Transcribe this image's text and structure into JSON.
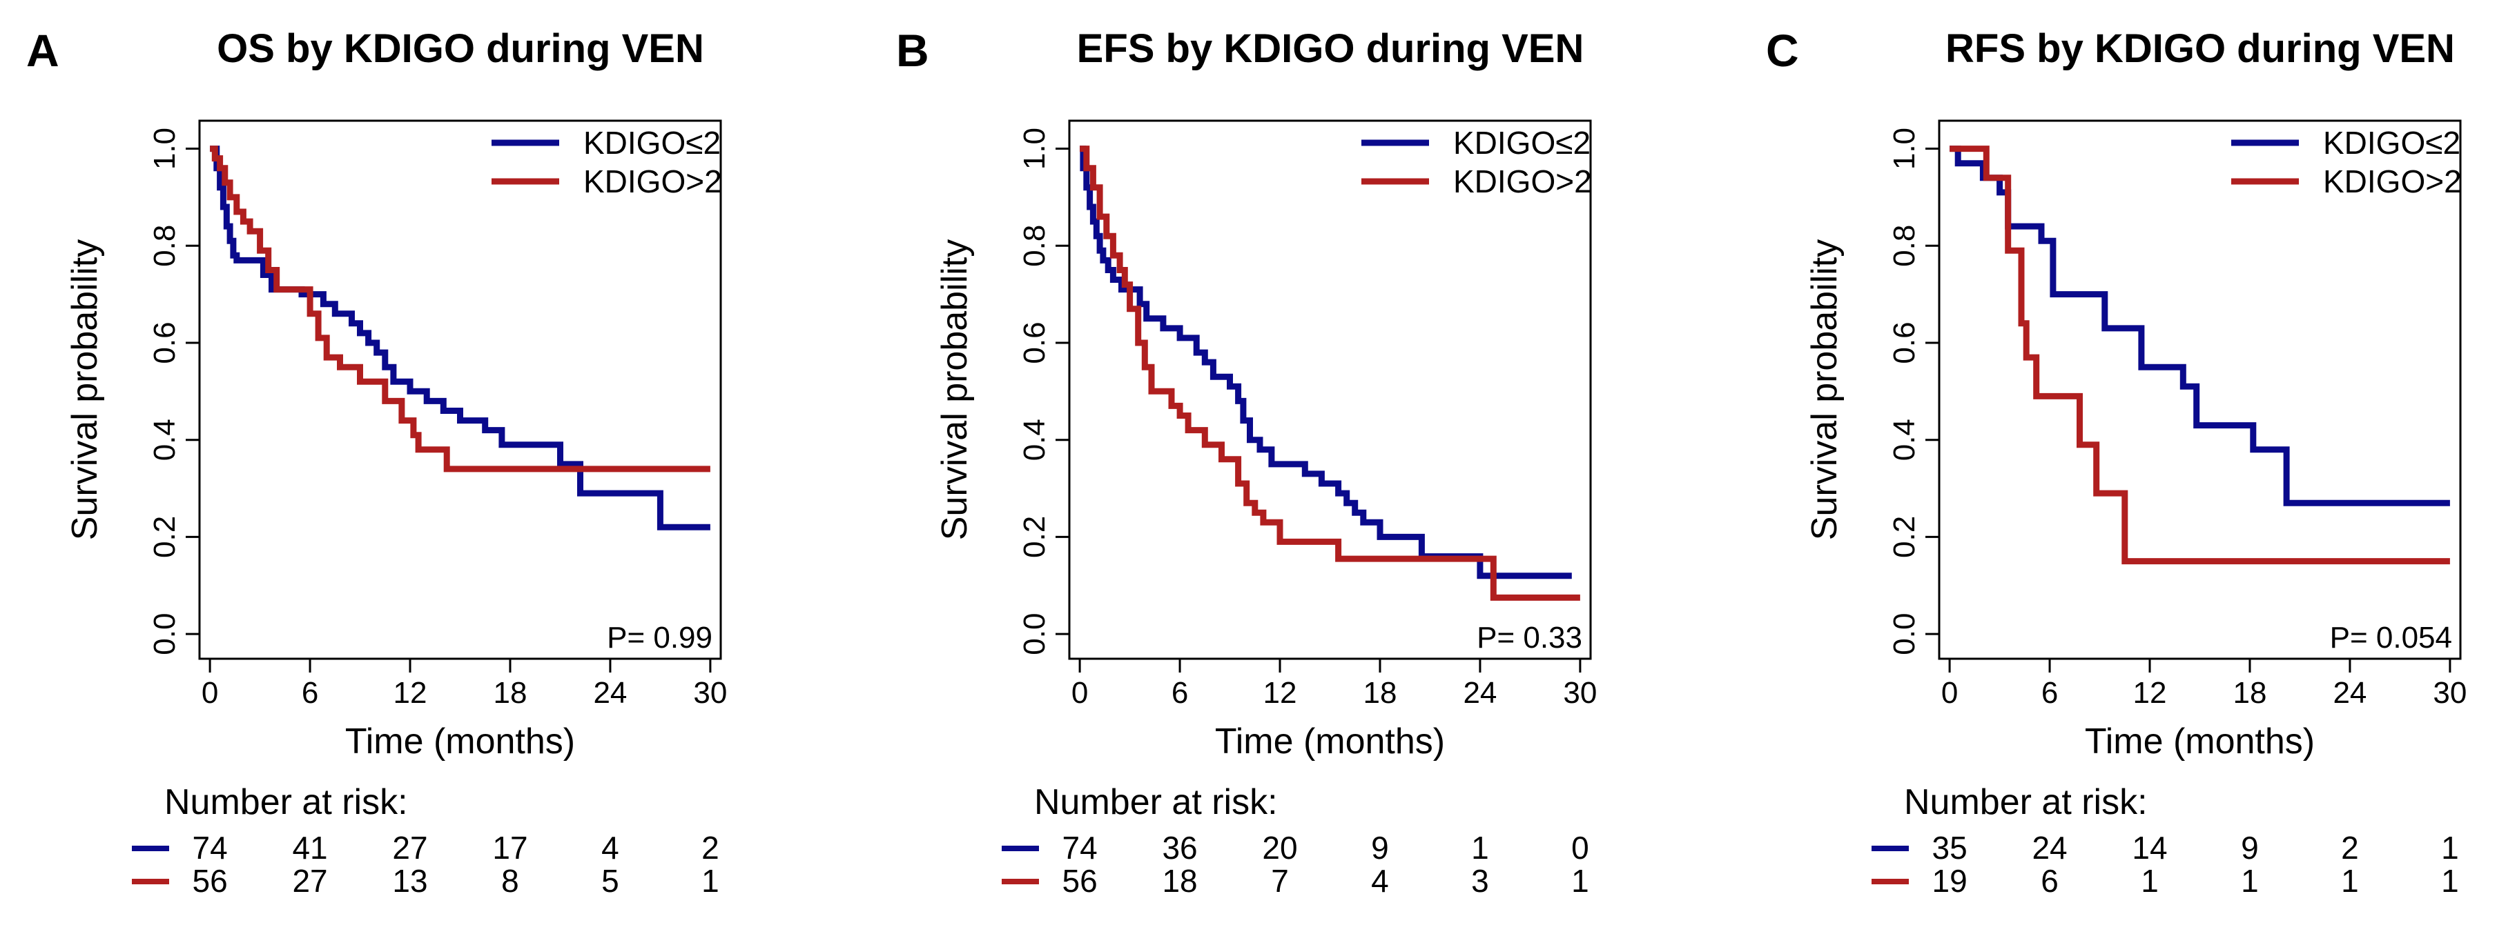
{
  "chart_data": [
    {
      "type": "line",
      "panel": "A",
      "title": "OS by KDIGO during VEN",
      "xlabel": "Time (months)",
      "ylabel": "Survival probability",
      "xlim": [
        0,
        30
      ],
      "ylim": [
        0,
        1
      ],
      "x_ticks": [
        0,
        6,
        12,
        18,
        24,
        30
      ],
      "y_ticks": [
        "0.0",
        "0.2",
        "0.4",
        "0.6",
        "0.8",
        "1.0"
      ],
      "legend": [
        "KDIGO≤2",
        "KDIGO>2"
      ],
      "legend_position": "top-right",
      "p_value": "P= 0.99",
      "series": [
        {
          "name": "KDIGO≤2",
          "color": "#0a0a8c",
          "x": [
            0,
            0.4,
            0.6,
            0.8,
            1.0,
            1.2,
            1.4,
            1.6,
            2.5,
            3.2,
            3.7,
            5.5,
            6.8,
            7.5,
            8.5,
            9.0,
            9.5,
            10.0,
            10.5,
            11.0,
            12.0,
            13.0,
            14.0,
            15.0,
            16.5,
            17.5,
            21.0,
            22.2,
            27.0,
            30.0
          ],
          "y": [
            1.0,
            0.96,
            0.92,
            0.88,
            0.84,
            0.81,
            0.78,
            0.77,
            0.77,
            0.74,
            0.71,
            0.7,
            0.68,
            0.66,
            0.64,
            0.62,
            0.6,
            0.58,
            0.55,
            0.52,
            0.5,
            0.48,
            0.46,
            0.44,
            0.42,
            0.39,
            0.35,
            0.29,
            0.22,
            0.22
          ]
        },
        {
          "name": "KDIGO>2",
          "color": "#b01f1f",
          "x": [
            0,
            0.3,
            0.6,
            0.9,
            1.2,
            1.6,
            2.0,
            2.4,
            3.0,
            3.5,
            4.0,
            6.0,
            6.5,
            7.0,
            7.8,
            9.0,
            10.5,
            11.5,
            12.2,
            12.5,
            14.2,
            30.0
          ],
          "y": [
            1.0,
            0.98,
            0.96,
            0.93,
            0.9,
            0.87,
            0.85,
            0.83,
            0.79,
            0.75,
            0.71,
            0.66,
            0.61,
            0.57,
            0.55,
            0.52,
            0.48,
            0.44,
            0.41,
            0.38,
            0.34,
            0.34
          ]
        }
      ],
      "risk_table": {
        "label": "Number at risk:",
        "rows": [
          {
            "color": "#0a0a8c",
            "values": [
              "74",
              "41",
              "27",
              "17",
              "4",
              "2"
            ]
          },
          {
            "color": "#b01f1f",
            "values": [
              "56",
              "27",
              "13",
              "8",
              "5",
              "1"
            ]
          }
        ]
      }
    },
    {
      "type": "line",
      "panel": "B",
      "title": "EFS by KDIGO during VEN",
      "xlabel": "Time (months)",
      "ylabel": "Survival probability",
      "xlim": [
        0,
        30
      ],
      "ylim": [
        0,
        1
      ],
      "x_ticks": [
        0,
        6,
        12,
        18,
        24,
        30
      ],
      "y_ticks": [
        "0.0",
        "0.2",
        "0.4",
        "0.6",
        "0.8",
        "1.0"
      ],
      "legend": [
        "KDIGO≤2",
        "KDIGO>2"
      ],
      "legend_position": "top-right",
      "p_value": "P= 0.33",
      "series": [
        {
          "name": "KDIGO≤2",
          "color": "#0a0a8c",
          "x": [
            0,
            0.2,
            0.4,
            0.6,
            0.8,
            1.0,
            1.2,
            1.4,
            1.7,
            2.0,
            2.5,
            3.0,
            3.6,
            4.0,
            5.0,
            6.0,
            7.0,
            7.5,
            8.0,
            9.0,
            9.5,
            9.8,
            10.2,
            10.8,
            11.5,
            13.5,
            14.5,
            15.5,
            16.0,
            16.5,
            17.0,
            18.0,
            20.5,
            24.0,
            29.5
          ],
          "y": [
            1.0,
            0.96,
            0.92,
            0.88,
            0.85,
            0.82,
            0.79,
            0.77,
            0.75,
            0.73,
            0.71,
            0.71,
            0.68,
            0.65,
            0.63,
            0.61,
            0.58,
            0.56,
            0.53,
            0.51,
            0.48,
            0.44,
            0.4,
            0.38,
            0.35,
            0.33,
            0.31,
            0.29,
            0.27,
            0.25,
            0.23,
            0.2,
            0.16,
            0.12,
            0.12
          ]
        },
        {
          "name": "KDIGO>2",
          "color": "#b01f1f",
          "x": [
            0,
            0.4,
            0.8,
            1.2,
            1.6,
            2.0,
            2.4,
            2.7,
            3.0,
            3.5,
            3.9,
            4.3,
            5.5,
            6.0,
            6.5,
            7.5,
            8.5,
            9.5,
            10.0,
            10.5,
            11.0,
            12.0,
            15.5,
            24.8,
            30.0
          ],
          "y": [
            1.0,
            0.96,
            0.92,
            0.86,
            0.82,
            0.78,
            0.75,
            0.72,
            0.67,
            0.6,
            0.55,
            0.5,
            0.47,
            0.45,
            0.42,
            0.39,
            0.36,
            0.31,
            0.27,
            0.25,
            0.23,
            0.19,
            0.155,
            0.075,
            0.075
          ]
        }
      ],
      "risk_table": {
        "label": "Number at risk:",
        "rows": [
          {
            "color": "#0a0a8c",
            "values": [
              "74",
              "36",
              "20",
              "9",
              "1",
              "0"
            ]
          },
          {
            "color": "#b01f1f",
            "values": [
              "56",
              "18",
              "7",
              "4",
              "3",
              "1"
            ]
          }
        ]
      }
    },
    {
      "type": "line",
      "panel": "C",
      "title": "RFS by KDIGO during VEN",
      "xlabel": "Time (months)",
      "ylabel": "Survival probability",
      "xlim": [
        0,
        30
      ],
      "ylim": [
        0,
        1
      ],
      "x_ticks": [
        0,
        6,
        12,
        18,
        24,
        30
      ],
      "y_ticks": [
        "0.0",
        "0.2",
        "0.4",
        "0.6",
        "0.8",
        "1.0"
      ],
      "legend": [
        "KDIGO≤2",
        "KDIGO>2"
      ],
      "legend_position": "top-right",
      "p_value": "P= 0.054",
      "series": [
        {
          "name": "KDIGO≤2",
          "color": "#0a0a8c",
          "x": [
            0,
            0.5,
            2.0,
            3.0,
            3.5,
            5.5,
            6.2,
            9.3,
            11.5,
            14.0,
            14.8,
            18.2,
            20.2,
            30.0
          ],
          "y": [
            1.0,
            0.97,
            0.94,
            0.91,
            0.84,
            0.81,
            0.7,
            0.63,
            0.55,
            0.51,
            0.43,
            0.38,
            0.27,
            0.27
          ]
        },
        {
          "name": "KDIGO>2",
          "color": "#b01f1f",
          "x": [
            0,
            2.2,
            3.5,
            4.3,
            4.6,
            5.2,
            7.8,
            8.8,
            10.5,
            30.0
          ],
          "y": [
            1.0,
            0.94,
            0.79,
            0.64,
            0.57,
            0.49,
            0.39,
            0.29,
            0.15,
            0.15
          ]
        }
      ],
      "risk_table": {
        "label": "Number at risk:",
        "rows": [
          {
            "color": "#0a0a8c",
            "values": [
              "35",
              "24",
              "14",
              "9",
              "2",
              "1"
            ]
          },
          {
            "color": "#b01f1f",
            "values": [
              "19",
              "6",
              "1",
              "1",
              "1",
              "1"
            ]
          }
        ]
      }
    }
  ]
}
